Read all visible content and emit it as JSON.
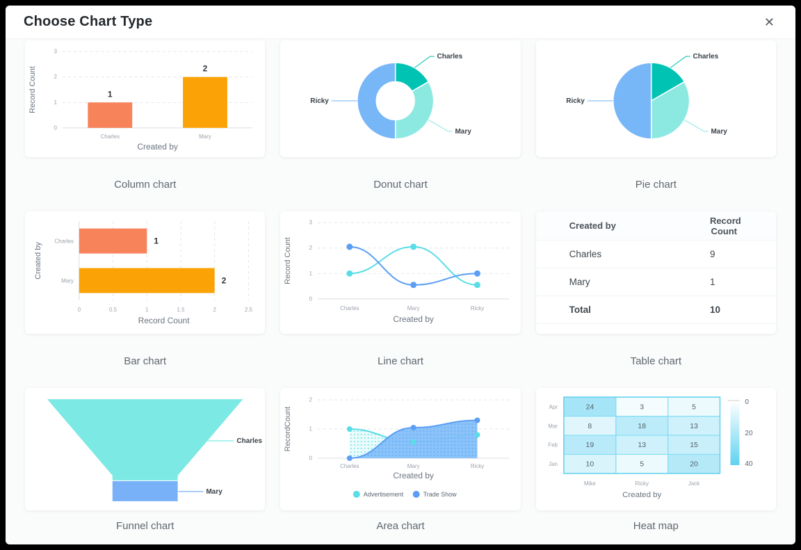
{
  "dialog": {
    "title": "Choose Chart Type",
    "close_icon": "✕"
  },
  "palette": {
    "coral": "#f7835a",
    "orange": "#fba306",
    "teal": "#00c3b3",
    "cyan_light": "#8ce9e2",
    "blue_light": "#77b6f7",
    "line_blue": "#5b9ef3",
    "line_cyan": "#59dde6",
    "funnel_teal": "#7ce9e4",
    "funnel_blue": "#79b1f8",
    "heat_base_rgb": "64,199,238",
    "heat_border": "#7edcf3",
    "heat_outline": "#5fd0ee"
  },
  "charts": [
    {
      "id": "column",
      "label": "Column chart",
      "type": "bar",
      "categories": [
        "Charles",
        "Mary"
      ],
      "values": [
        1,
        2
      ],
      "data_labels": [
        "1",
        "2"
      ],
      "bar_colors": [
        "#f7835a",
        "#fba306"
      ],
      "xlabel": "Created by",
      "ylabel": "Record Count",
      "yticks": [
        0,
        1,
        2,
        3
      ],
      "ylim": [
        0,
        3
      ]
    },
    {
      "id": "donut",
      "label": "Donut chart",
      "type": "pie",
      "inner_radius_ratio": 0.5,
      "slices": [
        {
          "label": "Charles",
          "value": 1,
          "color": "#00c3b3"
        },
        {
          "label": "Mary",
          "value": 2,
          "color": "#8ce9e2"
        },
        {
          "label": "Ricky",
          "value": 3,
          "color": "#77b6f7"
        }
      ]
    },
    {
      "id": "pie",
      "label": "Pie chart",
      "type": "pie",
      "inner_radius_ratio": 0,
      "slices": [
        {
          "label": "Charles",
          "value": 1,
          "color": "#00c3b3"
        },
        {
          "label": "Mary",
          "value": 2,
          "color": "#8ce9e2"
        },
        {
          "label": "Ricky",
          "value": 3,
          "color": "#77b6f7"
        }
      ]
    },
    {
      "id": "bar",
      "label": "Bar chart",
      "type": "bar",
      "orientation": "horizontal",
      "categories": [
        "Charles",
        "Mary"
      ],
      "values": [
        1,
        2
      ],
      "data_labels": [
        "1",
        "2"
      ],
      "bar_colors": [
        "#f7835a",
        "#fba306"
      ],
      "xticks": [
        0,
        0.5,
        1,
        1.5,
        2,
        2.5
      ],
      "xlim": [
        0,
        2.5
      ],
      "xlabel": "Record Count",
      "ylabel": "Created by"
    },
    {
      "id": "line",
      "label": "Line chart",
      "type": "line",
      "x": [
        "Charles",
        "Mary",
        "Ricky"
      ],
      "series": [
        {
          "color": "#59dde6",
          "values": [
            1,
            2.05,
            0.55
          ]
        },
        {
          "color": "#5b9ef3",
          "values": [
            2.05,
            0.55,
            1
          ]
        }
      ],
      "xlabel": "Created by",
      "ylabel": "Record Count",
      "yticks": [
        0,
        1,
        2,
        3
      ],
      "ylim": [
        0,
        3
      ]
    },
    {
      "id": "table",
      "label": "Table chart",
      "type": "table",
      "headers": [
        "Created by",
        "Record Count"
      ],
      "rows": [
        [
          "Charles",
          "9"
        ],
        [
          "Mary",
          "1"
        ],
        [
          "Total",
          "10"
        ]
      ],
      "total_row_index": 2
    },
    {
      "id": "funnel",
      "label": "Funnel chart",
      "type": "funnel",
      "segments": [
        {
          "label": "Charles",
          "color": "#7ce9e4"
        },
        {
          "label": "Mary",
          "color": "#79b1f8"
        }
      ]
    },
    {
      "id": "area",
      "label": "Area chart",
      "type": "area",
      "x": [
        "Charles",
        "Mary",
        "Ricky"
      ],
      "series": [
        {
          "name": "Advertisement",
          "color": "#59dde6",
          "values": [
            1,
            0.55,
            0.8
          ]
        },
        {
          "name": "Trade Show",
          "color": "#5b9ef3",
          "values": [
            0,
            1.05,
            1.3
          ]
        }
      ],
      "xlabel": "Created by",
      "ylabel": "RecordCount",
      "yticks": [
        0,
        1,
        2
      ],
      "ylim": [
        0,
        2
      ],
      "legend": [
        "Advertisement",
        "Trade Show"
      ]
    },
    {
      "id": "heatmap",
      "label": "Heat map",
      "type": "heatmap",
      "rows": [
        "Apr",
        "Mar",
        "Feb",
        "Jan"
      ],
      "columns": [
        "Mike",
        "Ricky",
        "Jack"
      ],
      "values": [
        [
          24,
          3,
          5
        ],
        [
          8,
          18,
          13
        ],
        [
          19,
          13,
          15
        ],
        [
          10,
          5,
          20
        ]
      ],
      "xlabel": "Created by",
      "scale_ticks": [
        0,
        20,
        40
      ],
      "scale_max": 40
    }
  ]
}
